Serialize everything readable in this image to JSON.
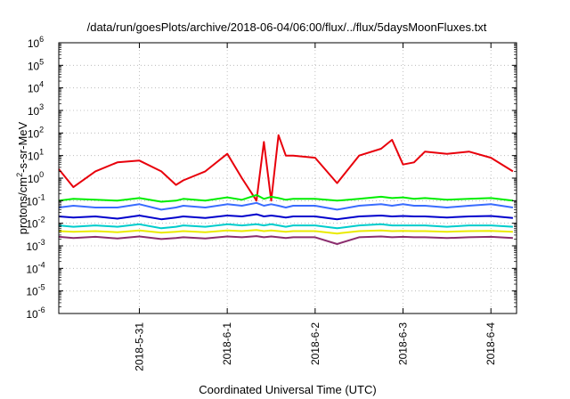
{
  "chart_data": {
    "type": "line",
    "title": "/data/run/goesPlots/archive/2018-06-04/06:00/flux/../flux/5daysMoonFluxes.txt",
    "xlabel": "Coordinated Universal Time (UTC)",
    "ylabel": {
      "pre": "protons/cm",
      "sup": "2",
      "post": "-s-sr-MeV"
    },
    "yscale": "log",
    "ylim": [
      1e-06,
      1000000.0
    ],
    "xlim": [
      "2018-05-30 02:00",
      "2018-06-04 07:00"
    ],
    "grid": true,
    "legend": "none",
    "y_ticks": [
      {
        "value": 1e-06,
        "base": "10",
        "exp": "-6"
      },
      {
        "value": 1e-05,
        "base": "10",
        "exp": "-5"
      },
      {
        "value": 0.0001,
        "base": "10",
        "exp": "-4"
      },
      {
        "value": 0.001,
        "base": "10",
        "exp": "-3"
      },
      {
        "value": 0.01,
        "base": "10",
        "exp": "-2"
      },
      {
        "value": 0.1,
        "base": "10",
        "exp": "-1"
      },
      {
        "value": 1.0,
        "base": "10",
        "exp": "0"
      },
      {
        "value": 10.0,
        "base": "10",
        "exp": "1"
      },
      {
        "value": 100.0,
        "base": "10",
        "exp": "2"
      },
      {
        "value": 1000.0,
        "base": "10",
        "exp": "3"
      },
      {
        "value": 10000.0,
        "base": "10",
        "exp": "4"
      },
      {
        "value": 100000.0,
        "base": "10",
        "exp": "5"
      },
      {
        "value": 1000000.0,
        "base": "10",
        "exp": "6"
      }
    ],
    "x_ticks": [
      {
        "value": "2018-05-31 00:00",
        "label": "2018-5-31"
      },
      {
        "value": "2018-06-01 00:00",
        "label": "2018-6-1"
      },
      {
        "value": "2018-06-02 00:00",
        "label": "2018-6-2"
      },
      {
        "value": "2018-06-03 00:00",
        "label": "2018-6-3"
      },
      {
        "value": "2018-06-04 00:00",
        "label": "2018-6-4"
      }
    ],
    "x": [
      "2018-05-30 02:00",
      "2018-05-30 06:00",
      "2018-05-30 12:00",
      "2018-05-30 18:00",
      "2018-05-31 00:00",
      "2018-05-31 06:00",
      "2018-05-31 10:00",
      "2018-05-31 12:00",
      "2018-05-31 18:00",
      "2018-06-01 00:00",
      "2018-06-01 04:00",
      "2018-06-01 08:00",
      "2018-06-01 10:00",
      "2018-06-01 12:00",
      "2018-06-01 14:00",
      "2018-06-01 16:00",
      "2018-06-01 18:00",
      "2018-06-02 00:00",
      "2018-06-02 06:00",
      "2018-06-02 12:00",
      "2018-06-02 18:00",
      "2018-06-02 21:00",
      "2018-06-03 00:00",
      "2018-06-03 03:00",
      "2018-06-03 06:00",
      "2018-06-03 12:00",
      "2018-06-03 18:00",
      "2018-06-04 00:00",
      "2018-06-04 06:00"
    ],
    "series": [
      {
        "color": "#e8000b",
        "values": [
          2.5,
          0.4,
          2,
          5,
          6,
          2,
          0.5,
          0.8,
          2,
          12,
          1,
          0.1,
          40,
          0.1,
          80,
          10,
          10,
          8,
          0.6,
          10,
          20,
          50,
          4,
          5,
          15,
          12,
          15,
          8,
          2
        ]
      },
      {
        "color": "#00ee00",
        "values": [
          0.1,
          0.12,
          0.11,
          0.1,
          0.13,
          0.09,
          0.1,
          0.12,
          0.1,
          0.14,
          0.11,
          0.18,
          0.12,
          0.15,
          0.13,
          0.11,
          0.12,
          0.12,
          0.1,
          0.12,
          0.15,
          0.13,
          0.14,
          0.12,
          0.13,
          0.11,
          0.12,
          0.13,
          0.1
        ]
      },
      {
        "color": "#3a6cff",
        "values": [
          0.05,
          0.06,
          0.05,
          0.05,
          0.07,
          0.04,
          0.05,
          0.06,
          0.05,
          0.07,
          0.06,
          0.08,
          0.06,
          0.07,
          0.06,
          0.05,
          0.06,
          0.06,
          0.04,
          0.06,
          0.07,
          0.06,
          0.07,
          0.06,
          0.06,
          0.05,
          0.06,
          0.07,
          0.05
        ]
      },
      {
        "color": "#0000cc",
        "values": [
          0.02,
          0.018,
          0.02,
          0.016,
          0.022,
          0.015,
          0.018,
          0.02,
          0.017,
          0.022,
          0.02,
          0.025,
          0.02,
          0.022,
          0.02,
          0.018,
          0.02,
          0.02,
          0.015,
          0.02,
          0.022,
          0.02,
          0.021,
          0.02,
          0.02,
          0.018,
          0.02,
          0.021,
          0.017
        ]
      },
      {
        "color": "#00cccc",
        "values": [
          0.008,
          0.007,
          0.008,
          0.007,
          0.009,
          0.006,
          0.007,
          0.008,
          0.007,
          0.009,
          0.008,
          0.009,
          0.008,
          0.009,
          0.008,
          0.007,
          0.008,
          0.008,
          0.006,
          0.008,
          0.009,
          0.008,
          0.008,
          0.008,
          0.008,
          0.007,
          0.008,
          0.008,
          0.007
        ]
      },
      {
        "color": "#eaea00",
        "values": [
          0.0045,
          0.0042,
          0.0045,
          0.004,
          0.0048,
          0.0038,
          0.0042,
          0.0045,
          0.004,
          0.0048,
          0.0045,
          0.005,
          0.0045,
          0.0048,
          0.0045,
          0.0042,
          0.0045,
          0.0045,
          0.0035,
          0.0045,
          0.0048,
          0.0045,
          0.0046,
          0.0045,
          0.0045,
          0.0042,
          0.0045,
          0.0046,
          0.0042
        ]
      },
      {
        "color": "#8b2d6e",
        "values": [
          0.0025,
          0.0022,
          0.0025,
          0.0021,
          0.0026,
          0.002,
          0.0022,
          0.0024,
          0.0021,
          0.0026,
          0.0024,
          0.0027,
          0.0024,
          0.0026,
          0.0024,
          0.0022,
          0.0024,
          0.0024,
          0.0012,
          0.0024,
          0.0026,
          0.0024,
          0.0025,
          0.0024,
          0.0024,
          0.0022,
          0.0024,
          0.0025,
          0.0022
        ]
      }
    ]
  }
}
